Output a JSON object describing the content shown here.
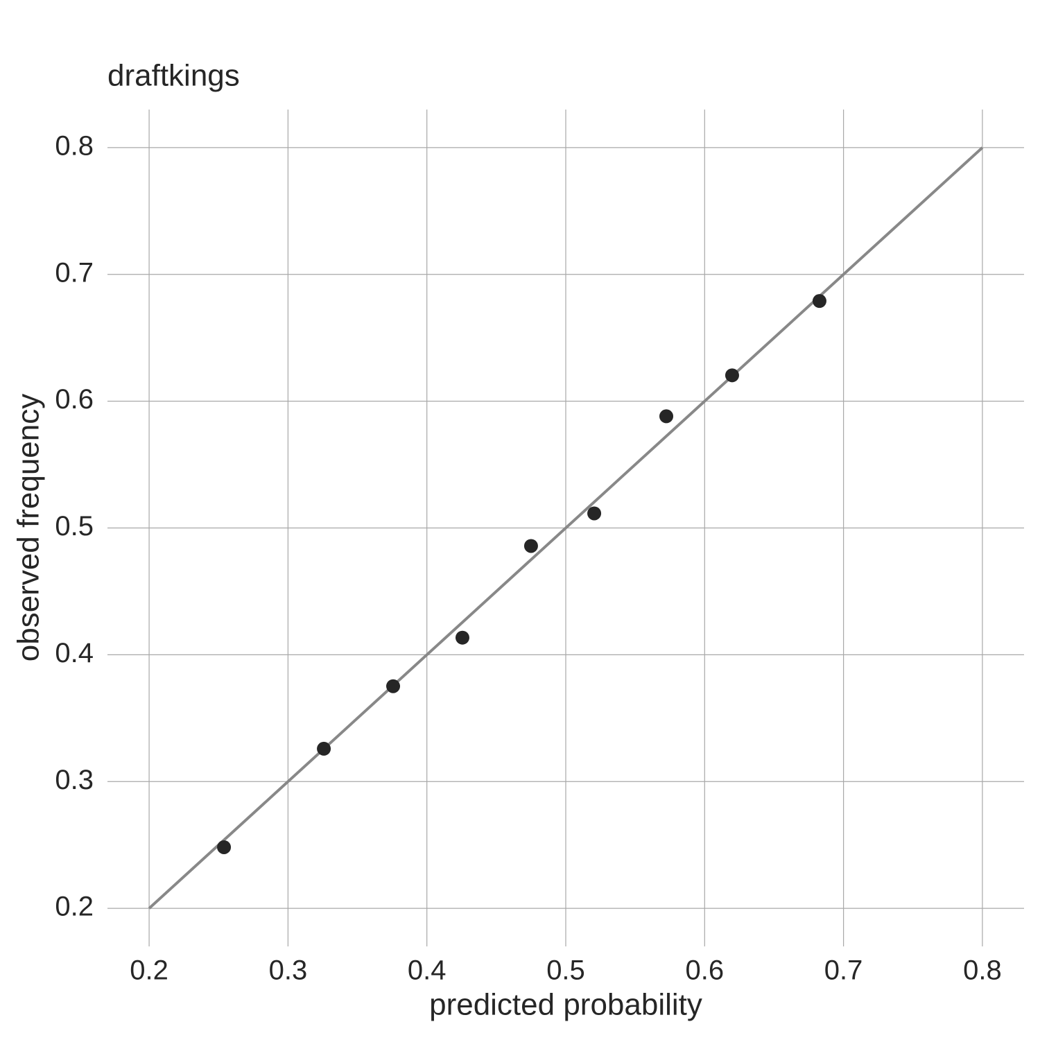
{
  "chart_data": {
    "type": "scatter",
    "title": "draftkings",
    "x_label": "predicted probability",
    "y_label": "observed frequency",
    "x": [
      0.2539,
      0.3258,
      0.3757,
      0.4256,
      0.475,
      0.5205,
      0.5724,
      0.6198,
      0.6827
    ],
    "values": [
      0.2482,
      0.3259,
      0.3752,
      0.4135,
      0.4858,
      0.5115,
      0.5881,
      0.6204,
      0.679
    ],
    "color": "#262626",
    "reference_line": {
      "x": [
        0.2,
        0.8
      ],
      "values": [
        0.2,
        0.8
      ],
      "color": "#888888"
    },
    "xlim": [
      0.17,
      0.83
    ],
    "ylim": [
      0.17,
      0.83
    ],
    "xticks": [
      0.2,
      0.3,
      0.4,
      0.5,
      0.6,
      0.7,
      0.8
    ],
    "yticks": [
      0.2,
      0.3,
      0.4,
      0.5,
      0.6,
      0.7,
      0.8
    ],
    "grid": true
  }
}
